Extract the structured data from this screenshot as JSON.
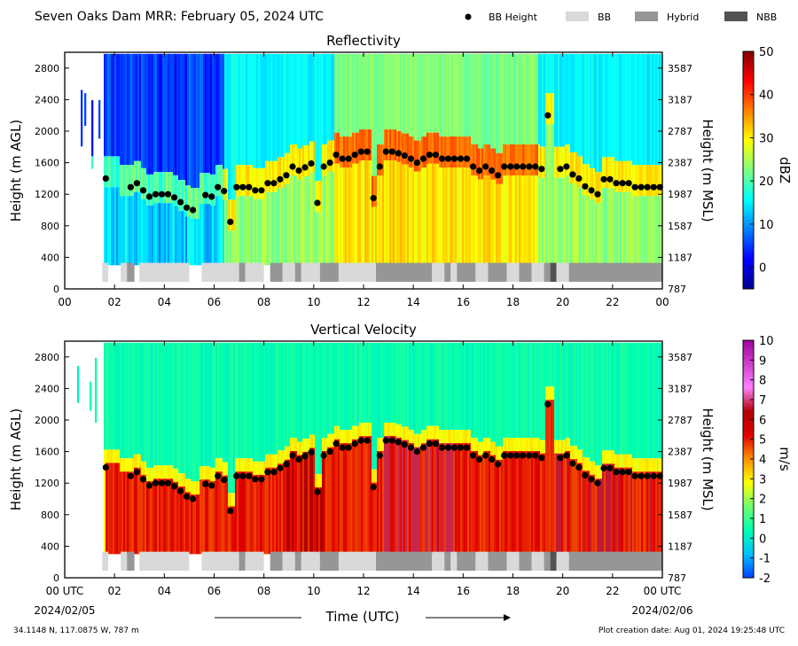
{
  "header": {
    "title": "Seven Oaks Dam MRR:  February 05, 2024 UTC",
    "legend": [
      {
        "label": "BB Height",
        "kind": "dot",
        "color": "#000000"
      },
      {
        "label": "BB",
        "kind": "box",
        "color": "#d9d9d9"
      },
      {
        "label": "Hybrid",
        "kind": "box",
        "color": "#969696"
      },
      {
        "label": "NBB",
        "kind": "box",
        "color": "#525252"
      }
    ]
  },
  "footer": {
    "location": "34.1148 N, 117.0875 W, 787 m",
    "creation": "Plot creation date: Aug 01, 2024 19:25:48 UTC",
    "xlabel": "Time (UTC)",
    "date_start": "2024/02/05",
    "date_end": "2024/02/06"
  },
  "chart_data": [
    {
      "type": "heatmap",
      "title": "Reflectivity",
      "ylabel": "Height (m AGL)",
      "ylabel_right": "Height (m MSL)",
      "x_ticks": [
        "00",
        "02",
        "04",
        "06",
        "08",
        "10",
        "12",
        "14",
        "16",
        "18",
        "20",
        "22",
        "00"
      ],
      "y_ticks": [
        0,
        400,
        800,
        1200,
        1600,
        2000,
        2400,
        2800
      ],
      "y2_ticks": [
        787,
        1187,
        1587,
        1987,
        2387,
        2787,
        3187,
        3587
      ],
      "xlim_hours": [
        0,
        24
      ],
      "ylim": [
        0,
        3000
      ],
      "colorbar": {
        "label": "dBZ",
        "range": [
          -5,
          50
        ],
        "ticks": [
          0,
          10,
          20,
          30,
          40,
          50
        ],
        "colors": [
          "#00008f",
          "#0000ff",
          "#0080ff",
          "#00ffff",
          "#80ff80",
          "#ffff00",
          "#ff8000",
          "#ff0000",
          "#800000"
        ]
      }
    },
    {
      "type": "heatmap",
      "title": "Vertical Velocity",
      "ylabel": "Height (m AGL)",
      "ylabel_right": "Height (m MSL)",
      "x_ticks": [
        "00 UTC",
        "02",
        "04",
        "06",
        "08",
        "10",
        "12",
        "14",
        "16",
        "18",
        "20",
        "22",
        "00 UTC"
      ],
      "y_ticks": [
        0,
        400,
        800,
        1200,
        1600,
        2000,
        2400,
        2800
      ],
      "y2_ticks": [
        787,
        1187,
        1587,
        1987,
        2387,
        2787,
        3187,
        3587
      ],
      "xlim_hours": [
        0,
        24
      ],
      "ylim": [
        0,
        3000
      ],
      "colorbar": {
        "label": "m/s",
        "range": [
          -2,
          10
        ],
        "ticks": [
          -2,
          -1,
          0,
          1,
          2,
          3,
          4,
          5,
          6,
          7,
          8,
          9,
          10
        ],
        "colors": [
          "#0040ff",
          "#00c0ff",
          "#00ffb0",
          "#70ff70",
          "#ffff00",
          "#ff9000",
          "#e00000",
          "#b00000",
          "#ff80ff",
          "#d040d0",
          "#a000a0"
        ]
      }
    }
  ],
  "bb_heights": {
    "hours": [
      1.65,
      2.65,
      2.9,
      3.15,
      3.4,
      3.65,
      3.9,
      4.15,
      4.4,
      4.65,
      4.9,
      5.15,
      5.65,
      5.9,
      6.15,
      6.4,
      6.65,
      6.9,
      7.15,
      7.4,
      7.65,
      7.9,
      8.15,
      8.4,
      8.65,
      8.9,
      9.15,
      9.4,
      9.65,
      9.9,
      10.15,
      10.4,
      10.65,
      10.9,
      11.15,
      11.4,
      11.65,
      11.9,
      12.15,
      12.4,
      12.65,
      12.9,
      13.15,
      13.4,
      13.65,
      13.9,
      14.15,
      14.4,
      14.65,
      14.9,
      15.15,
      15.4,
      15.65,
      15.9,
      16.15,
      16.4,
      16.65,
      16.9,
      17.15,
      17.4,
      17.65,
      17.9,
      18.15,
      18.4,
      18.65,
      18.9,
      19.15,
      19.4,
      19.9,
      20.15,
      20.4,
      20.65,
      20.9,
      21.15,
      21.4,
      21.65,
      21.9,
      22.15,
      22.4,
      22.65,
      22.9,
      23.15,
      23.4,
      23.65,
      23.9
    ],
    "agl_m": [
      1400,
      1290,
      1340,
      1250,
      1170,
      1200,
      1200,
      1200,
      1160,
      1100,
      1030,
      1000,
      1190,
      1170,
      1290,
      1240,
      850,
      1290,
      1290,
      1290,
      1250,
      1250,
      1340,
      1340,
      1390,
      1440,
      1550,
      1500,
      1540,
      1590,
      1090,
      1550,
      1600,
      1700,
      1650,
      1650,
      1700,
      1740,
      1740,
      1150,
      1550,
      1740,
      1740,
      1720,
      1690,
      1650,
      1600,
      1650,
      1700,
      1700,
      1650,
      1650,
      1650,
      1650,
      1650,
      1550,
      1500,
      1550,
      1500,
      1440,
      1550,
      1550,
      1550,
      1550,
      1550,
      1550,
      1520,
      2200,
      1520,
      1550,
      1450,
      1400,
      1300,
      1250,
      1200,
      1390,
      1390,
      1340,
      1340,
      1340,
      1290,
      1290,
      1290,
      1290,
      1290
    ]
  },
  "bb_type_bar": {
    "segments": [
      {
        "start": 1.5,
        "end": 1.75,
        "type": "BB"
      },
      {
        "start": 2.25,
        "end": 2.5,
        "type": "BB"
      },
      {
        "start": 2.5,
        "end": 2.8,
        "type": "Hybrid"
      },
      {
        "start": 3.0,
        "end": 5.0,
        "type": "BB"
      },
      {
        "start": 5.5,
        "end": 7.0,
        "type": "BB"
      },
      {
        "start": 7.0,
        "end": 7.25,
        "type": "Hybrid"
      },
      {
        "start": 7.25,
        "end": 8.0,
        "type": "BB"
      },
      {
        "start": 8.25,
        "end": 8.75,
        "type": "Hybrid"
      },
      {
        "start": 8.75,
        "end": 9.25,
        "type": "BB"
      },
      {
        "start": 9.25,
        "end": 9.5,
        "type": "Hybrid"
      },
      {
        "start": 9.5,
        "end": 10.25,
        "type": "BB"
      },
      {
        "start": 10.25,
        "end": 11.0,
        "type": "Hybrid"
      },
      {
        "start": 11.0,
        "end": 12.5,
        "type": "BB"
      },
      {
        "start": 12.5,
        "end": 14.75,
        "type": "Hybrid"
      },
      {
        "start": 14.75,
        "end": 15.25,
        "type": "BB"
      },
      {
        "start": 15.25,
        "end": 15.5,
        "type": "Hybrid"
      },
      {
        "start": 15.5,
        "end": 15.75,
        "type": "BB"
      },
      {
        "start": 15.75,
        "end": 16.5,
        "type": "Hybrid"
      },
      {
        "start": 16.5,
        "end": 17.0,
        "type": "BB"
      },
      {
        "start": 17.0,
        "end": 17.75,
        "type": "Hybrid"
      },
      {
        "start": 17.75,
        "end": 18.25,
        "type": "BB"
      },
      {
        "start": 18.25,
        "end": 18.75,
        "type": "Hybrid"
      },
      {
        "start": 18.75,
        "end": 19.25,
        "type": "BB"
      },
      {
        "start": 19.25,
        "end": 19.5,
        "type": "Hybrid"
      },
      {
        "start": 19.5,
        "end": 19.75,
        "type": "NBB"
      },
      {
        "start": 19.75,
        "end": 20.25,
        "type": "BB"
      },
      {
        "start": 20.25,
        "end": 24.0,
        "type": "Hybrid"
      }
    ]
  }
}
